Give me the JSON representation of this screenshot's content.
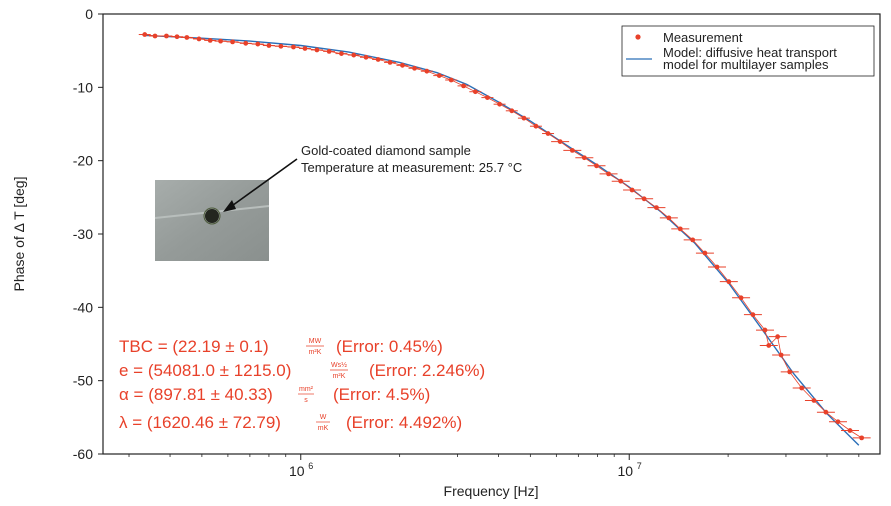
{
  "chart_data": {
    "type": "scatter",
    "xlabel": "Frequency [Hz]",
    "ylabel": "Phase of Δ T [deg]",
    "xscale": "log",
    "xlim": [
      250000,
      58000000
    ],
    "ylim": [
      -60,
      0
    ],
    "x_ticks": [
      {
        "value": 1000000,
        "base": "10",
        "exp": "6"
      },
      {
        "value": 10000000,
        "base": "10",
        "exp": "7"
      }
    ],
    "y_ticks": [
      "0",
      "-10",
      "-20",
      "-30",
      "-40",
      "-50",
      "-60"
    ],
    "grid": false,
    "legend_position": "top-right",
    "series": [
      {
        "name": "Measurement",
        "style": "points-with-error-bars",
        "color": "#e8412a",
        "points": [
          [
            335000,
            -2.8
          ],
          [
            360000,
            -3.0
          ],
          [
            390000,
            -3.0
          ],
          [
            420000,
            -3.1
          ],
          [
            450000,
            -3.2
          ],
          [
            490000,
            -3.4
          ],
          [
            530000,
            -3.6
          ],
          [
            570000,
            -3.7
          ],
          [
            620000,
            -3.8
          ],
          [
            680000,
            -4.0
          ],
          [
            740000,
            -4.1
          ],
          [
            800000,
            -4.3
          ],
          [
            870000,
            -4.4
          ],
          [
            950000,
            -4.5
          ],
          [
            1030000,
            -4.7
          ],
          [
            1120000,
            -4.9
          ],
          [
            1220000,
            -5.1
          ],
          [
            1330000,
            -5.4
          ],
          [
            1450000,
            -5.6
          ],
          [
            1580000,
            -5.9
          ],
          [
            1720000,
            -6.2
          ],
          [
            1870000,
            -6.6
          ],
          [
            2040000,
            -7.0
          ],
          [
            2220000,
            -7.4
          ],
          [
            2420000,
            -7.8
          ],
          [
            2640000,
            -8.4
          ],
          [
            2870000,
            -9.0
          ],
          [
            3130000,
            -9.8
          ],
          [
            3400000,
            -10.6
          ],
          [
            3700000,
            -11.4
          ],
          [
            4030000,
            -12.3
          ],
          [
            4390000,
            -13.2
          ],
          [
            4780000,
            -14.2
          ],
          [
            5200000,
            -15.3
          ],
          [
            5660000,
            -16.3
          ],
          [
            6160000,
            -17.4
          ],
          [
            6710000,
            -18.6
          ],
          [
            7300000,
            -19.6
          ],
          [
            7950000,
            -20.7
          ],
          [
            8650000,
            -21.8
          ],
          [
            9420000,
            -22.8
          ],
          [
            10200000,
            -24.0
          ],
          [
            11100000,
            -25.2
          ],
          [
            12100000,
            -26.4
          ],
          [
            13200000,
            -27.8
          ],
          [
            14300000,
            -29.3
          ],
          [
            15600000,
            -30.8
          ],
          [
            17000000,
            -32.6
          ],
          [
            18500000,
            -34.5
          ],
          [
            20100000,
            -36.5
          ],
          [
            21900000,
            -38.7
          ],
          [
            23800000,
            -41.0
          ],
          [
            25900000,
            -43.1
          ],
          [
            26600000,
            -45.2
          ],
          [
            28300000,
            -44.0
          ],
          [
            29000000,
            -46.5
          ],
          [
            30800000,
            -48.8
          ],
          [
            33500000,
            -51.0
          ],
          [
            36500000,
            -52.7
          ],
          [
            39700000,
            -54.3
          ],
          [
            43200000,
            -55.6
          ],
          [
            47000000,
            -56.8
          ],
          [
            51000000,
            -57.8
          ]
        ]
      },
      {
        "name": "Model: diffusive heat transport model for multilayer samples",
        "legend_lines": [
          "Model: diffusive heat transport",
          "model for multilayer samples"
        ],
        "style": "line",
        "color": "#2a6fb8",
        "points": [
          [
            330000,
            -2.9
          ],
          [
            500000,
            -3.3
          ],
          [
            700000,
            -3.7
          ],
          [
            1000000,
            -4.3
          ],
          [
            1400000,
            -5.2
          ],
          [
            2000000,
            -6.6
          ],
          [
            2600000,
            -8.0
          ],
          [
            3200000,
            -9.6
          ],
          [
            4000000,
            -12.0
          ],
          [
            5000000,
            -14.6
          ],
          [
            6300000,
            -17.6
          ],
          [
            8000000,
            -20.6
          ],
          [
            10000000,
            -23.6
          ],
          [
            12500000,
            -27.0
          ],
          [
            15800000,
            -31.2
          ],
          [
            20000000,
            -36.6
          ],
          [
            25000000,
            -42.6
          ],
          [
            31600000,
            -49.0
          ],
          [
            40000000,
            -54.5
          ],
          [
            50000000,
            -58.8
          ]
        ]
      }
    ]
  },
  "annotation": {
    "lines": [
      "Gold-coated diamond sample",
      "Temperature at measurement: 25.7 °C"
    ]
  },
  "results": [
    {
      "main": "TBC = (22.19 ± 0.1)",
      "unit_num": "MW",
      "unit_den": "m²K",
      "error": "(Error: 0.45%)"
    },
    {
      "main": "e = (54081.0 ± 1215.0)",
      "unit_num": "Ws½",
      "unit_den": "m²K",
      "error": "(Error: 2.246%)"
    },
    {
      "main": "α = (897.81 ± 40.33)",
      "unit_num": "mm²",
      "unit_den": "s",
      "error": "(Error: 4.5%)"
    },
    {
      "main": "λ = (1620.46 ± 72.79)",
      "unit_num": "W",
      "unit_den": "mK",
      "error": "(Error: 4.492%)"
    }
  ],
  "colors": {
    "measurement": "#e8412a",
    "model": "#2a6fb8",
    "results_text": "#e8412a",
    "photo_background": "#9ea4a2"
  },
  "inset_image": "sample-photo"
}
